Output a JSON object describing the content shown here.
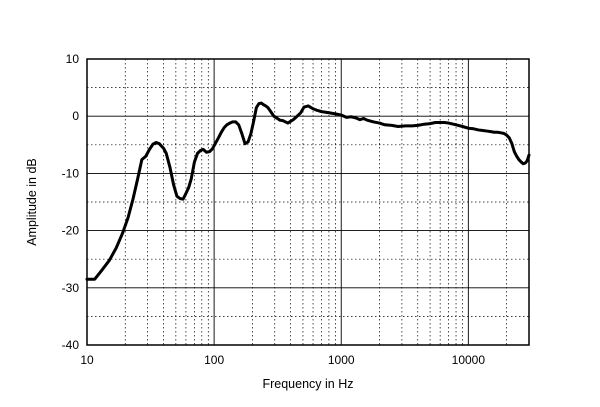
{
  "chart_data": {
    "type": "line",
    "title": "",
    "xlabel": "Frequency in Hz",
    "ylabel": "Amplitude in dB",
    "xscale": "log",
    "xlim": [
      10,
      30000
    ],
    "ylim": [
      -40,
      10
    ],
    "grid": true,
    "x_ticks": [
      "10",
      "100",
      "1000",
      "10000"
    ],
    "y_ticks": [
      "10",
      "0",
      "-10",
      "-20",
      "-30",
      "-40"
    ],
    "series": [
      {
        "x": [
          10,
          11.5,
          13,
          15,
          17,
          19,
          21,
          23,
          25,
          27,
          29,
          31,
          33,
          35,
          37,
          40,
          42,
          45,
          48,
          51,
          54,
          57,
          60,
          63,
          66,
          70,
          74,
          78,
          82,
          87,
          92,
          97,
          102,
          108,
          114,
          120,
          126,
          133,
          140,
          148,
          156,
          165,
          175,
          185,
          195,
          205,
          215,
          225,
          235,
          245,
          255,
          265,
          275,
          285,
          295,
          310,
          330,
          350,
          380,
          420,
          450,
          480,
          510,
          550,
          600,
          650,
          700,
          800,
          900,
          1000,
          1100,
          1200,
          1300,
          1400,
          1500,
          1600,
          1800,
          2000,
          2200,
          2500,
          2800,
          3200,
          3600,
          4000,
          4500,
          5000,
          5500,
          6000,
          6500,
          7000,
          8000,
          9000,
          10000,
          11000,
          12000,
          13000,
          14000,
          15000,
          16000,
          17000,
          18000,
          19000,
          20000,
          21000,
          22000,
          23000,
          24000,
          25000,
          26000,
          27000,
          28000,
          29000,
          30000
        ],
        "y": [
          -28.5,
          -28.5,
          -27.0,
          -25.2,
          -23.0,
          -20.5,
          -17.8,
          -14.5,
          -11.0,
          -7.6,
          -7.0,
          -5.8,
          -4.9,
          -4.6,
          -4.8,
          -5.6,
          -6.5,
          -9.0,
          -12.0,
          -14.0,
          -14.4,
          -14.5,
          -13.5,
          -12.5,
          -11.0,
          -8.0,
          -6.5,
          -6.0,
          -5.8,
          -6.3,
          -6.2,
          -5.7,
          -4.8,
          -3.8,
          -2.8,
          -2.0,
          -1.5,
          -1.2,
          -1.0,
          -1.0,
          -1.5,
          -3.0,
          -4.8,
          -4.5,
          -3.0,
          -0.8,
          1.5,
          2.2,
          2.3,
          2.0,
          1.8,
          1.5,
          1.0,
          0.5,
          0.0,
          -0.3,
          -0.7,
          -0.8,
          -1.2,
          -0.6,
          0.0,
          0.6,
          1.6,
          1.8,
          1.3,
          1.0,
          0.8,
          0.6,
          0.4,
          0.2,
          -0.2,
          -0.1,
          -0.3,
          -0.6,
          -0.4,
          -0.7,
          -1.0,
          -1.2,
          -1.5,
          -1.6,
          -1.8,
          -1.7,
          -1.7,
          -1.6,
          -1.4,
          -1.3,
          -1.1,
          -1.1,
          -1.1,
          -1.2,
          -1.5,
          -1.8,
          -2.1,
          -2.2,
          -2.4,
          -2.5,
          -2.6,
          -2.7,
          -2.8,
          -2.8,
          -2.9,
          -3.0,
          -3.3,
          -3.8,
          -4.8,
          -6.2,
          -7.0,
          -7.6,
          -8.0,
          -8.3,
          -8.2,
          -7.8,
          -6.8
        ]
      }
    ]
  }
}
